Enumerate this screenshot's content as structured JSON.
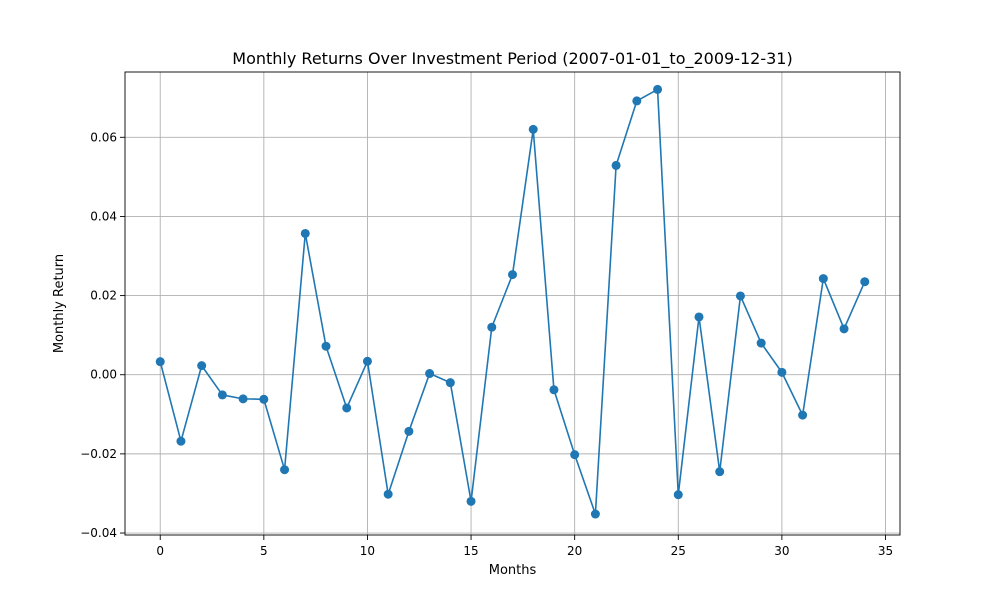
{
  "chart_data": {
    "type": "line",
    "title": "Monthly Returns Over Investment Period (2007-01-01_to_2009-12-31)",
    "xlabel": "Months",
    "ylabel": "Monthly Return",
    "xlim": [
      -1.7,
      35.7
    ],
    "ylim": [
      -0.0405,
      0.0765
    ],
    "xticks": [
      0,
      5,
      10,
      15,
      20,
      25,
      30,
      35
    ],
    "xtick_labels": [
      "0",
      "5",
      "10",
      "15",
      "20",
      "25",
      "30",
      "35"
    ],
    "yticks": [
      -0.04,
      -0.02,
      0.0,
      0.02,
      0.04,
      0.06
    ],
    "ytick_labels": [
      "−0.04",
      "−0.02",
      "0.00",
      "0.02",
      "0.04",
      "0.06"
    ],
    "grid": true,
    "marker": "circle",
    "line_color": "#1f77b4",
    "series": [
      {
        "x": [
          0,
          1,
          2,
          3,
          4,
          5,
          6,
          7,
          8,
          9,
          10,
          11,
          12,
          13,
          14,
          15,
          16,
          17,
          18,
          19,
          20,
          21,
          22,
          23,
          24,
          25,
          26,
          27,
          28,
          29,
          30,
          31,
          32,
          33,
          34
        ],
        "values": [
          0.0033,
          -0.0168,
          0.0023,
          -0.0051,
          -0.0061,
          -0.0062,
          -0.024,
          0.0357,
          0.0072,
          -0.0084,
          0.0034,
          -0.0302,
          -0.0143,
          0.0003,
          -0.002,
          -0.032,
          0.012,
          0.0253,
          0.062,
          -0.0038,
          -0.0202,
          -0.0352,
          0.0529,
          0.0692,
          0.0721,
          -0.0303,
          0.0146,
          -0.0245,
          0.0199,
          0.008,
          0.0006,
          -0.0102,
          0.0243,
          0.0116,
          0.0235
        ]
      }
    ]
  }
}
